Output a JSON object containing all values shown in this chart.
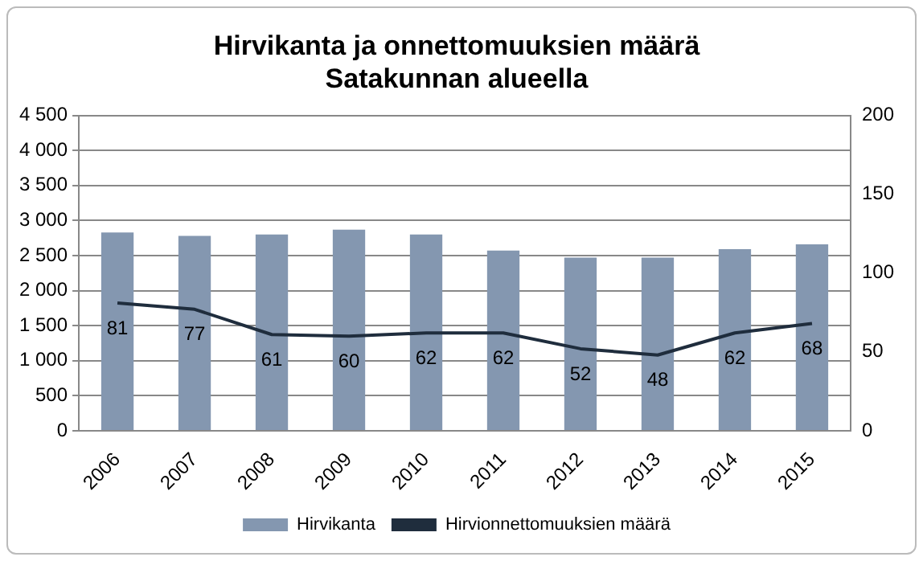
{
  "chart_data": {
    "type": "bar",
    "title": "Hirvikanta ja onnettomuuksien määrä\nSatakunnan alueella",
    "categories": [
      "2006",
      "2007",
      "2008",
      "2009",
      "2010",
      "2011",
      "2012",
      "2013",
      "2014",
      "2015"
    ],
    "series": [
      {
        "name": "Hirvikanta",
        "color": "#8497b0",
        "values": [
          2830,
          2780,
          2800,
          2870,
          2800,
          2570,
          2470,
          2470,
          2590,
          2660
        ]
      },
      {
        "name": "Hirvionnettomuuksien määrä",
        "type": "line",
        "axis": "y2",
        "color": "#1f2d3d",
        "values": [
          81,
          77,
          61,
          60,
          62,
          62,
          52,
          48,
          62,
          68
        ],
        "value_labels": [
          "81",
          "77",
          "61",
          "60",
          "62",
          "62",
          "52",
          "48",
          "62",
          "68"
        ]
      }
    ],
    "ylim": [
      0,
      4500
    ],
    "yticks": [
      0,
      500,
      {
        "value": 1000,
        "label": "1 000"
      },
      {
        "value": 1500,
        "label": "1 500"
      },
      {
        "value": 2000,
        "label": "2 000"
      },
      {
        "value": 2500,
        "label": "2 500"
      },
      {
        "value": 3000,
        "label": "3 000"
      },
      {
        "value": 3500,
        "label": "3 500"
      },
      {
        "value": 4000,
        "label": "4 000"
      },
      {
        "value": 4500,
        "label": "4 500"
      }
    ],
    "y2lim": [
      0,
      200
    ],
    "y2ticks": [
      0,
      50,
      100,
      150,
      200
    ],
    "grid": "y",
    "legend": "bottom",
    "marker": "none"
  }
}
